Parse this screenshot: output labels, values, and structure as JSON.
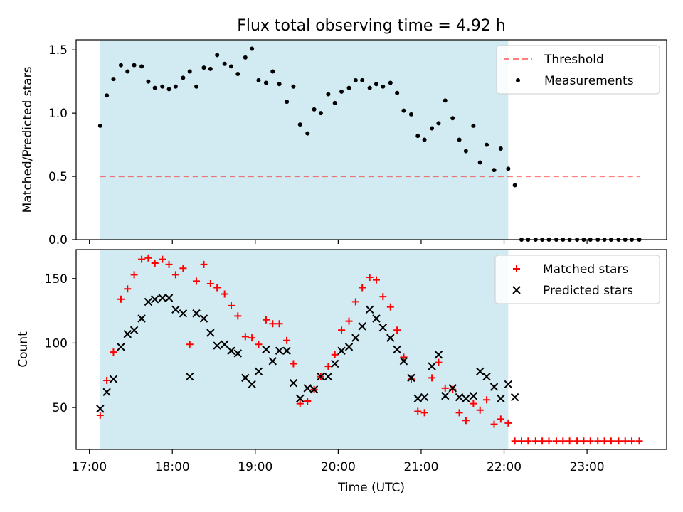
{
  "title": "Flux total observing time = 4.92 h",
  "colors": {
    "shade": "#add8e6",
    "threshold": "#ff0000",
    "measurements": "#000000",
    "matched": "#ff0000",
    "predicted": "#000000"
  },
  "chart_data": [
    {
      "type": "scatter",
      "ylabel": "Matched/Predicted stars",
      "xlim": [
        16.84,
        23.96
      ],
      "ylim": [
        0,
        1.58
      ],
      "yticks": [
        0.0,
        0.5,
        1.0,
        1.5
      ],
      "ytick_labels": [
        "0.0",
        "0.5",
        "1.0",
        "1.5"
      ],
      "shaded_x": [
        17.13,
        22.05
      ],
      "legend": "top-right",
      "threshold": {
        "name": "Threshold",
        "y": 0.5,
        "x": [
          17.13,
          23.64
        ],
        "style": "dashed"
      },
      "series": [
        {
          "name": "Measurements",
          "marker": "dot",
          "x": [
            17.13,
            17.21,
            17.29,
            17.38,
            17.46,
            17.54,
            17.63,
            17.71,
            17.79,
            17.88,
            17.96,
            18.04,
            18.13,
            18.21,
            18.29,
            18.38,
            18.46,
            18.54,
            18.63,
            18.71,
            18.79,
            18.88,
            18.96,
            19.04,
            19.13,
            19.21,
            19.29,
            19.38,
            19.46,
            19.54,
            19.63,
            19.71,
            19.79,
            19.88,
            19.96,
            20.04,
            20.13,
            20.21,
            20.29,
            20.38,
            20.46,
            20.54,
            20.63,
            20.71,
            20.79,
            20.88,
            20.96,
            21.04,
            21.13,
            21.21,
            21.29,
            21.38,
            21.46,
            21.54,
            21.63,
            21.71,
            21.79,
            21.88,
            21.96,
            22.05,
            22.13,
            22.21,
            22.29,
            22.38,
            22.46,
            22.54,
            22.63,
            22.71,
            22.79,
            22.88,
            22.96,
            23.04,
            23.13,
            23.21,
            23.29,
            23.38,
            23.46,
            23.54,
            23.63
          ],
          "y": [
            0.9,
            1.14,
            1.27,
            1.38,
            1.33,
            1.38,
            1.37,
            1.25,
            1.2,
            1.21,
            1.19,
            1.21,
            1.28,
            1.33,
            1.21,
            1.36,
            1.35,
            1.46,
            1.39,
            1.37,
            1.31,
            1.44,
            1.51,
            1.26,
            1.24,
            1.33,
            1.23,
            1.09,
            1.21,
            0.91,
            0.84,
            1.03,
            1.0,
            1.15,
            1.08,
            1.17,
            1.2,
            1.26,
            1.26,
            1.2,
            1.23,
            1.21,
            1.24,
            1.16,
            1.02,
            0.99,
            0.82,
            0.79,
            0.88,
            0.92,
            1.1,
            0.96,
            0.79,
            0.7,
            0.9,
            0.61,
            0.75,
            0.55,
            0.72,
            0.56,
            0.43,
            0.0,
            0.0,
            0.0,
            0.0,
            0.0,
            0.0,
            0.0,
            0.0,
            0.0,
            0.0,
            0.0,
            0.0,
            0.0,
            0.0,
            0.0,
            0.0,
            0.0,
            0.0
          ]
        }
      ]
    },
    {
      "type": "scatter",
      "xlabel": "Time (UTC)",
      "ylabel": "Count",
      "xlim": [
        16.84,
        23.96
      ],
      "ylim": [
        17.5,
        172.5
      ],
      "yticks": [
        50,
        100,
        150
      ],
      "ytick_labels": [
        "50",
        "100",
        "150"
      ],
      "xticks": [
        17,
        18,
        19,
        20,
        21,
        22,
        23
      ],
      "xtick_labels": [
        "17:00",
        "18:00",
        "19:00",
        "20:00",
        "21:00",
        "22:00",
        "23:00"
      ],
      "shaded_x": [
        17.13,
        22.05
      ],
      "legend": "top-right",
      "series": [
        {
          "name": "Matched stars",
          "marker": "plus",
          "x": [
            17.13,
            17.21,
            17.29,
            17.38,
            17.46,
            17.54,
            17.63,
            17.71,
            17.79,
            17.88,
            17.96,
            18.04,
            18.13,
            18.21,
            18.29,
            18.38,
            18.46,
            18.54,
            18.63,
            18.71,
            18.79,
            18.88,
            18.96,
            19.04,
            19.13,
            19.21,
            19.29,
            19.38,
            19.46,
            19.54,
            19.63,
            19.71,
            19.79,
            19.88,
            19.96,
            20.04,
            20.13,
            20.21,
            20.29,
            20.38,
            20.46,
            20.54,
            20.63,
            20.71,
            20.79,
            20.88,
            20.96,
            21.04,
            21.13,
            21.21,
            21.29,
            21.38,
            21.46,
            21.54,
            21.63,
            21.71,
            21.79,
            21.88,
            21.96,
            22.05,
            22.13,
            22.21,
            22.29,
            22.38,
            22.46,
            22.54,
            22.63,
            22.71,
            22.79,
            22.88,
            22.96,
            23.04,
            23.13,
            23.21,
            23.29,
            23.38,
            23.46,
            23.54,
            23.63
          ],
          "y": [
            44,
            71,
            93,
            134,
            142,
            153,
            165,
            166,
            162,
            165,
            161,
            153,
            158,
            99,
            148,
            161,
            146,
            143,
            138,
            129,
            121,
            105,
            104,
            99,
            118,
            115,
            115,
            102,
            84,
            53,
            55,
            64,
            74,
            82,
            91,
            110,
            117,
            132,
            143,
            151,
            149,
            136,
            128,
            110,
            89,
            72,
            47,
            46,
            73,
            85,
            65,
            64,
            46,
            40,
            53,
            48,
            56,
            37,
            41,
            38,
            24,
            24,
            24,
            24,
            24,
            24,
            24,
            24,
            24,
            24,
            24,
            24,
            24,
            24,
            24,
            24,
            24,
            24,
            24
          ]
        },
        {
          "name": "Predicted stars",
          "marker": "x",
          "x": [
            17.13,
            17.21,
            17.29,
            17.38,
            17.46,
            17.54,
            17.63,
            17.71,
            17.79,
            17.88,
            17.96,
            18.04,
            18.13,
            18.21,
            18.29,
            18.38,
            18.46,
            18.54,
            18.63,
            18.71,
            18.79,
            18.88,
            18.96,
            19.04,
            19.13,
            19.21,
            19.29,
            19.38,
            19.46,
            19.54,
            19.63,
            19.71,
            19.79,
            19.88,
            19.96,
            20.04,
            20.13,
            20.21,
            20.29,
            20.38,
            20.46,
            20.54,
            20.63,
            20.71,
            20.79,
            20.88,
            20.96,
            21.04,
            21.13,
            21.21,
            21.29,
            21.38,
            21.46,
            21.54,
            21.63,
            21.71,
            21.79,
            21.88,
            21.96,
            22.05,
            22.13
          ],
          "y": [
            49,
            62,
            72,
            97,
            107,
            110,
            119,
            132,
            134,
            135,
            135,
            126,
            123,
            74,
            123,
            119,
            108,
            98,
            99,
            94,
            92,
            73,
            68,
            78,
            95,
            86,
            94,
            94,
            69,
            57,
            65,
            64,
            74,
            74,
            84,
            94,
            97,
            104,
            113,
            126,
            119,
            112,
            104,
            95,
            86,
            73,
            57,
            58,
            82,
            91,
            59,
            65,
            58,
            57,
            59,
            78,
            74,
            66,
            57,
            68,
            58
          ]
        }
      ]
    }
  ]
}
